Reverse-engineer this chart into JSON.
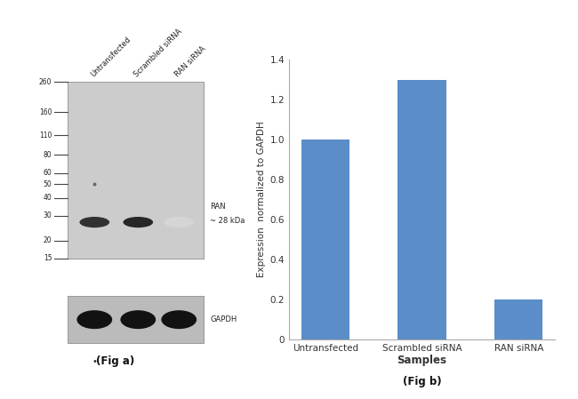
{
  "fig_width": 6.5,
  "fig_height": 4.49,
  "dpi": 100,
  "background_color": "#ffffff",
  "panel_a_caption": "(Fig a)",
  "panel_b_caption": "(Fig b)",
  "bar_categories": [
    "Untransfected",
    "Scrambled siRNA",
    "RAN siRNA"
  ],
  "bar_values": [
    1.0,
    1.3,
    0.2
  ],
  "bar_color": "#5b8dc8",
  "ylabel": "Expression  normalized to GAPDH",
  "xlabel": "Samples",
  "ylim": [
    0,
    1.4
  ],
  "yticks": [
    0,
    0.2,
    0.4,
    0.6,
    0.8,
    1.0,
    1.2,
    1.4
  ],
  "lane_labels": [
    "Untransfected",
    "Scrambled siRNA",
    "RAN siRNA"
  ],
  "mw_markers": [
    260,
    160,
    110,
    80,
    60,
    50,
    40,
    30,
    20,
    15
  ],
  "ran_band_label": "RAN\n~ 28 kDa",
  "gapdh_label": "GAPDH",
  "main_blot_bg": "#cccccc",
  "gapdh_blot_bg": "#bbbbbb",
  "blot_edge_color": "#999999"
}
